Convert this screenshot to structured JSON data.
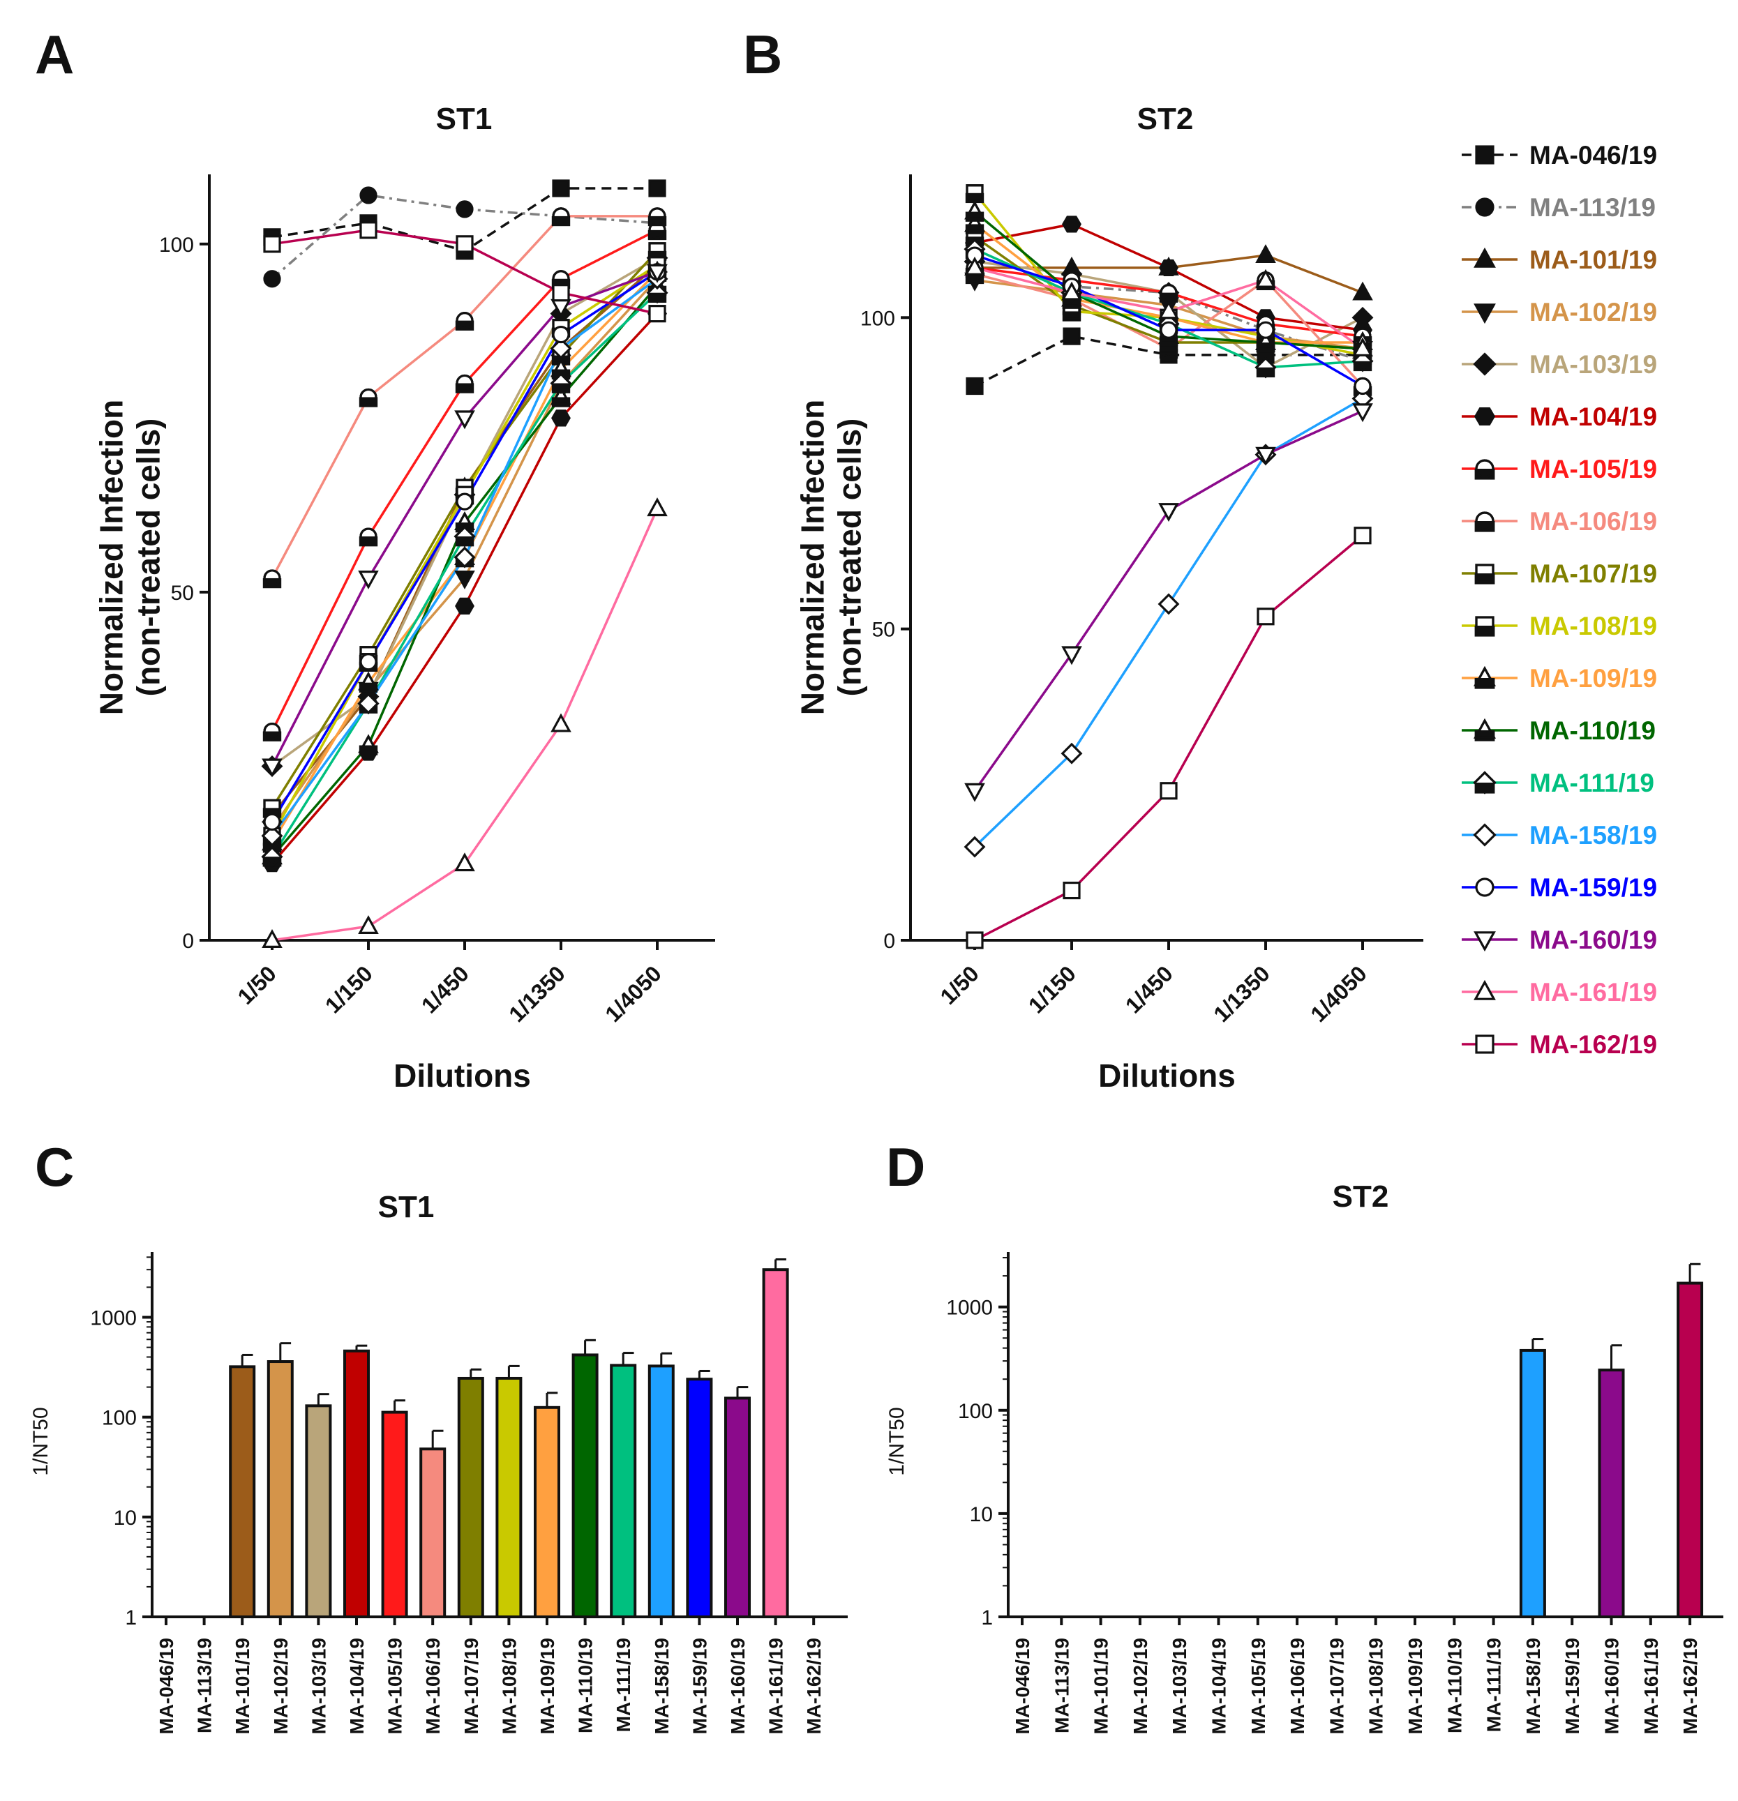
{
  "panels": {
    "A": {
      "letter": "A",
      "title": "ST1"
    },
    "B": {
      "letter": "B",
      "title": "ST2"
    },
    "C": {
      "letter": "C",
      "title": "ST1"
    },
    "D": {
      "letter": "D",
      "title": "ST2"
    }
  },
  "legend": [
    {
      "name": "MA-046/19",
      "color": "#111111",
      "marker": "square-filled",
      "dash": "dash"
    },
    {
      "name": "MA-113/19",
      "color": "#808080",
      "marker": "circle-filled",
      "dash": "dashdot"
    },
    {
      "name": "MA-101/19",
      "color": "#9c5c1a",
      "marker": "triangle-filled",
      "dash": "solid"
    },
    {
      "name": "MA-102/19",
      "color": "#d4944a",
      "marker": "triangle-down-filled",
      "dash": "solid"
    },
    {
      "name": "MA-103/19",
      "color": "#b9a57a",
      "marker": "diamond-filled",
      "dash": "solid"
    },
    {
      "name": "MA-104/19",
      "color": "#c00000",
      "marker": "hexagon-filled",
      "dash": "solid"
    },
    {
      "name": "MA-105/19",
      "color": "#ff1a1a",
      "marker": "circle-half",
      "dash": "solid"
    },
    {
      "name": "MA-106/19",
      "color": "#f58a7e",
      "marker": "circle-half",
      "dash": "solid"
    },
    {
      "name": "MA-107/19",
      "color": "#7f7f00",
      "marker": "square-half",
      "dash": "solid"
    },
    {
      "name": "MA-108/19",
      "color": "#c9c900",
      "marker": "square-half",
      "dash": "solid"
    },
    {
      "name": "MA-109/19",
      "color": "#ffa040",
      "marker": "triangle-half",
      "dash": "solid"
    },
    {
      "name": "MA-110/19",
      "color": "#006600",
      "marker": "triangle-half",
      "dash": "solid"
    },
    {
      "name": "MA-111/19",
      "color": "#00c07f",
      "marker": "diamond-half",
      "dash": "solid"
    },
    {
      "name": "MA-158/19",
      "color": "#1ea0ff",
      "marker": "diamond-open",
      "dash": "solid"
    },
    {
      "name": "MA-159/19",
      "color": "#0000ff",
      "marker": "circle-open",
      "dash": "solid"
    },
    {
      "name": "MA-160/19",
      "color": "#8b0a8b",
      "marker": "triangle-down-open",
      "dash": "solid"
    },
    {
      "name": "MA-161/19",
      "color": "#ff6ba0",
      "marker": "triangle-open",
      "dash": "solid"
    },
    {
      "name": "MA-162/19",
      "color": "#b8004f",
      "marker": "square-open",
      "dash": "solid"
    }
  ],
  "chart_data": [
    {
      "id": "A",
      "type": "line",
      "title": "ST1",
      "xlabel": "Dilutions",
      "ylabel": [
        "Normalized Infection",
        "(non-treated cells)"
      ],
      "categories": [
        "1/50",
        "1/150",
        "1/450",
        "1/1350",
        "1/4050"
      ],
      "ylim": [
        0,
        110
      ],
      "yticks": [
        0,
        50,
        100
      ],
      "series": [
        {
          "name": "MA-046/19",
          "values": [
            101,
            103,
            99,
            108,
            108
          ]
        },
        {
          "name": "MA-113/19",
          "values": [
            95,
            107,
            105,
            104,
            103
          ]
        },
        {
          "name": "MA-101/19",
          "values": [
            18,
            35,
            65,
            85,
            97
          ]
        },
        {
          "name": "MA-102/19",
          "values": [
            16,
            36,
            52,
            80,
            95
          ]
        },
        {
          "name": "MA-103/19",
          "values": [
            25,
            35,
            64,
            90,
            98
          ]
        },
        {
          "name": "MA-104/19",
          "values": [
            11,
            27,
            48,
            75,
            90
          ]
        },
        {
          "name": "MA-105/19",
          "values": [
            30,
            58,
            80,
            95,
            102
          ]
        },
        {
          "name": "MA-106/19",
          "values": [
            52,
            78,
            89,
            104,
            104
          ]
        },
        {
          "name": "MA-107/19",
          "values": [
            19,
            41,
            65,
            84,
            99
          ]
        },
        {
          "name": "MA-108/19",
          "values": [
            15,
            40,
            64,
            88,
            97
          ]
        },
        {
          "name": "MA-109/19",
          "values": [
            14,
            37,
            55,
            82,
            96
          ]
        },
        {
          "name": "MA-110/19",
          "values": [
            12,
            28,
            60,
            78,
            94
          ]
        },
        {
          "name": "MA-111/19",
          "values": [
            12,
            34,
            58,
            80,
            93
          ]
        },
        {
          "name": "MA-158/19",
          "values": [
            15,
            34,
            55,
            85,
            95
          ]
        },
        {
          "name": "MA-159/19",
          "values": [
            17,
            40,
            63,
            87,
            96
          ]
        },
        {
          "name": "MA-160/19",
          "values": [
            25,
            52,
            75,
            91,
            96
          ]
        },
        {
          "name": "MA-161/19",
          "values": [
            0,
            2,
            11,
            31,
            62
          ]
        },
        {
          "name": "MA-162/19",
          "values": [
            100,
            102,
            100,
            93,
            90
          ]
        }
      ]
    },
    {
      "id": "B",
      "type": "line",
      "title": "ST2",
      "xlabel": "Dilutions",
      "ylabel": [
        "Normalized Infection",
        "(non-treated cells)"
      ],
      "categories": [
        "1/50",
        "1/150",
        "1/450",
        "1/1350",
        "1/4050"
      ],
      "ylim": [
        0,
        123
      ],
      "yticks": [
        0,
        50,
        100
      ],
      "series": [
        {
          "name": "MA-046/19",
          "values": [
            89,
            97,
            94,
            94,
            94
          ]
        },
        {
          "name": "MA-113/19",
          "values": [
            110,
            105,
            104,
            98,
            93
          ]
        },
        {
          "name": "MA-101/19",
          "values": [
            108,
            108,
            108,
            110,
            104
          ]
        },
        {
          "name": "MA-102/19",
          "values": [
            106,
            104,
            102,
            97,
            95
          ]
        },
        {
          "name": "MA-103/19",
          "values": [
            109,
            107,
            104,
            92,
            100
          ]
        },
        {
          "name": "MA-104/19",
          "values": [
            112,
            115,
            108,
            100,
            98
          ]
        },
        {
          "name": "MA-105/19",
          "values": [
            108,
            106,
            104,
            99,
            97
          ]
        },
        {
          "name": "MA-106/19",
          "values": [
            107,
            103,
            95,
            106,
            89
          ]
        },
        {
          "name": "MA-107/19",
          "values": [
            113,
            102,
            96,
            96,
            95
          ]
        },
        {
          "name": "MA-108/19",
          "values": [
            120,
            101,
            100,
            97,
            94
          ]
        },
        {
          "name": "MA-109/19",
          "values": [
            115,
            103,
            100,
            96,
            96
          ]
        },
        {
          "name": "MA-110/19",
          "values": [
            117,
            104,
            97,
            96,
            95
          ]
        },
        {
          "name": "MA-111/19",
          "values": [
            111,
            104,
            99,
            92,
            93
          ]
        },
        {
          "name": "MA-158/19",
          "values": [
            15,
            30,
            54,
            78,
            87
          ]
        },
        {
          "name": "MA-159/19",
          "values": [
            110,
            105,
            98,
            98,
            89
          ]
        },
        {
          "name": "MA-160/19",
          "values": [
            24,
            46,
            69,
            78,
            85
          ]
        },
        {
          "name": "MA-161/19",
          "values": [
            108,
            104,
            101,
            106,
            95
          ]
        },
        {
          "name": "MA-162/19",
          "values": [
            0,
            8,
            24,
            52,
            65
          ]
        }
      ]
    },
    {
      "id": "C",
      "type": "bar",
      "title": "ST1",
      "ylabel": "1/NT50",
      "yscale": "log",
      "ylim": [
        1,
        4500
      ],
      "yticks": [
        1,
        10,
        100,
        1000
      ],
      "ytick_labels": [
        "1",
        "10",
        "100",
        "1000"
      ],
      "categories": [
        "MA-046/19",
        "MA-113/19",
        "MA-101/19",
        "MA-102/19",
        "MA-103/19",
        "MA-104/19",
        "MA-105/19",
        "MA-106/19",
        "MA-107/19",
        "MA-108/19",
        "MA-109/19",
        "MA-110/19",
        "MA-111/19",
        "MA-158/19",
        "MA-159/19",
        "MA-160/19",
        "MA-161/19",
        "MA-162/19"
      ],
      "values": [
        1,
        1,
        320,
        360,
        130,
        460,
        112,
        48,
        245,
        245,
        125,
        420,
        330,
        325,
        240,
        155,
        3000,
        1
      ],
      "errors": [
        0,
        0,
        100,
        190,
        40,
        60,
        35,
        25,
        55,
        80,
        50,
        170,
        110,
        110,
        50,
        45,
        800,
        0
      ]
    },
    {
      "id": "D",
      "type": "bar",
      "title": "ST2",
      "ylabel": "1/NT50",
      "yscale": "log",
      "ylim": [
        1,
        3400
      ],
      "yticks": [
        1,
        10,
        100,
        1000
      ],
      "ytick_labels": [
        "1",
        "10",
        "100",
        "1000"
      ],
      "categories": [
        "MA-046/19",
        "MA-113/19",
        "MA-101/19",
        "MA-102/19",
        "MA-103/19",
        "MA-104/19",
        "MA-105/19",
        "MA-106/19",
        "MA-107/19",
        "MA-108/19",
        "MA-109/19",
        "MA-110/19",
        "MA-111/19",
        "MA-158/19",
        "MA-159/19",
        "MA-160/19",
        "MA-161/19",
        "MA-162/19"
      ],
      "values": [
        1,
        1,
        1,
        1,
        1,
        1,
        1,
        1,
        1,
        1,
        1,
        1,
        1,
        380,
        1,
        245,
        1,
        1700
      ],
      "errors": [
        0,
        0,
        0,
        0,
        0,
        0,
        0,
        0,
        0,
        0,
        0,
        0,
        0,
        110,
        0,
        180,
        0,
        900
      ]
    }
  ]
}
